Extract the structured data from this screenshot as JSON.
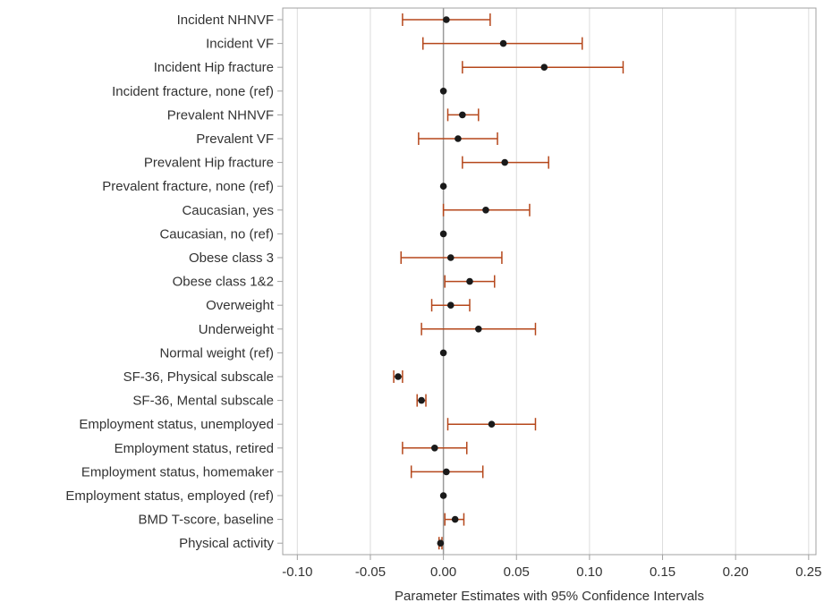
{
  "chart_data": {
    "type": "forest",
    "xlabel": "Parameter Estimates with 95% Confidence Intervals",
    "xlim": [
      -0.11,
      0.255
    ],
    "xticks": [
      "-0.10",
      "-0.05",
      "0.00",
      "0.05",
      "0.10",
      "0.15",
      "0.20",
      "0.25"
    ],
    "xtick_values": [
      -0.1,
      -0.05,
      0.0,
      0.05,
      0.1,
      0.15,
      0.2,
      0.25
    ],
    "reference_line": 0.0,
    "grid": "vertical",
    "rows": [
      {
        "label": "Incident NHNVF",
        "estimate": 0.002,
        "lower": -0.028,
        "upper": 0.032
      },
      {
        "label": "Incident VF",
        "estimate": 0.041,
        "lower": -0.014,
        "upper": 0.095
      },
      {
        "label": "Incident Hip fracture",
        "estimate": 0.069,
        "lower": 0.013,
        "upper": 0.123
      },
      {
        "label": "Incident fracture, none (ref)",
        "estimate": 0.0,
        "lower": null,
        "upper": null
      },
      {
        "label": "Prevalent NHNVF",
        "estimate": 0.013,
        "lower": 0.003,
        "upper": 0.024
      },
      {
        "label": "Prevalent VF",
        "estimate": 0.01,
        "lower": -0.017,
        "upper": 0.037
      },
      {
        "label": "Prevalent Hip fracture",
        "estimate": 0.042,
        "lower": 0.013,
        "upper": 0.072
      },
      {
        "label": "Prevalent fracture, none (ref)",
        "estimate": 0.0,
        "lower": null,
        "upper": null
      },
      {
        "label": "Caucasian, yes",
        "estimate": 0.029,
        "lower": 0.0,
        "upper": 0.059
      },
      {
        "label": "Caucasian, no (ref)",
        "estimate": 0.0,
        "lower": null,
        "upper": null
      },
      {
        "label": "Obese class 3",
        "estimate": 0.005,
        "lower": -0.029,
        "upper": 0.04
      },
      {
        "label": "Obese class 1&2",
        "estimate": 0.018,
        "lower": 0.001,
        "upper": 0.035
      },
      {
        "label": "Overweight",
        "estimate": 0.005,
        "lower": -0.008,
        "upper": 0.018
      },
      {
        "label": "Underweight",
        "estimate": 0.024,
        "lower": -0.015,
        "upper": 0.063
      },
      {
        "label": "Normal weight (ref)",
        "estimate": 0.0,
        "lower": null,
        "upper": null
      },
      {
        "label": "SF-36, Physical subscale",
        "estimate": -0.031,
        "lower": -0.034,
        "upper": -0.028
      },
      {
        "label": "SF-36, Mental subscale",
        "estimate": -0.015,
        "lower": -0.018,
        "upper": -0.012
      },
      {
        "label": "Employment status, unemployed",
        "estimate": 0.033,
        "lower": 0.003,
        "upper": 0.063
      },
      {
        "label": "Employment status, retired",
        "estimate": -0.006,
        "lower": -0.028,
        "upper": 0.016
      },
      {
        "label": "Employment status, homemaker",
        "estimate": 0.002,
        "lower": -0.022,
        "upper": 0.027
      },
      {
        "label": "Employment status, employed (ref)",
        "estimate": 0.0,
        "lower": null,
        "upper": null
      },
      {
        "label": "BMD T-score, baseline",
        "estimate": 0.008,
        "lower": 0.001,
        "upper": 0.014
      },
      {
        "label": "Physical activity",
        "estimate": -0.002,
        "lower": -0.003,
        "upper": -0.001
      }
    ],
    "colors": {
      "ci": "#b5471b",
      "point": "#1a1a1a",
      "grid": "#dcdcdc",
      "reference": "#9a9a9a",
      "frame": "#a0a0a0",
      "text": "#333333"
    }
  }
}
